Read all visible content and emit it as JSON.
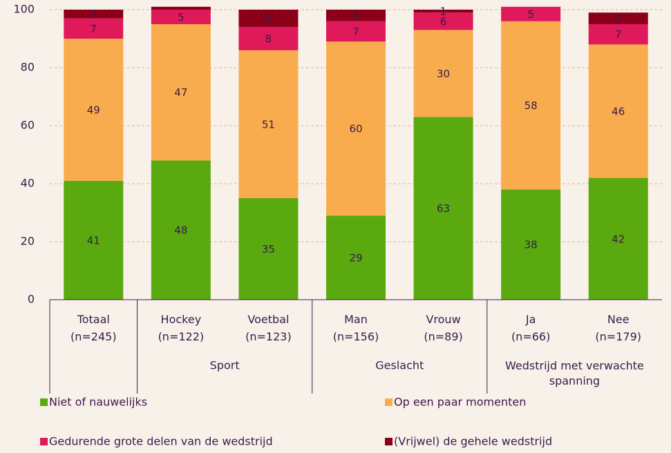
{
  "chart_data": {
    "type": "stacked_bar",
    "categories": [
      "Totaal\n(n=245)",
      "Hockey\n(n=122)",
      "Voetbal\n(n=123)",
      "Man\n(n=156)",
      "Vrouw\n(n=89)",
      "Ja\n(n=66)",
      "Nee\n(n=179)"
    ],
    "category_groups": [
      null,
      "Sport",
      "Sport",
      "Geslacht",
      "Geslacht",
      "Wedstrijd met verwachte spanning",
      "Wedstrijd met verwachte spanning"
    ],
    "series": [
      {
        "name": "Niet of nauwelijks",
        "color": "#5aa90f",
        "values": [
          41,
          48,
          35,
          29,
          63,
          38,
          42
        ]
      },
      {
        "name": "Op een paar momenten",
        "color": "#f9ac4e",
        "values": [
          49,
          47,
          51,
          60,
          30,
          58,
          46
        ]
      },
      {
        "name": "Gedurende grote delen van de wedstrijd",
        "color": "#e0195a",
        "values": [
          7,
          5,
          8,
          7,
          6,
          5,
          7
        ]
      },
      {
        "name": "(Vrijwel) de gehele wedstrijd",
        "color": "#8b0018",
        "values": [
          3,
          1,
          6,
          4,
          1,
          0,
          4
        ],
        "value_labels": [
          "3",
          null,
          "6",
          "4",
          "1",
          null,
          "4"
        ]
      }
    ],
    "ylim": [
      0,
      100
    ],
    "yticks": [
      0,
      20,
      40,
      60,
      80,
      100
    ],
    "grid": true,
    "legend": "bottom"
  }
}
